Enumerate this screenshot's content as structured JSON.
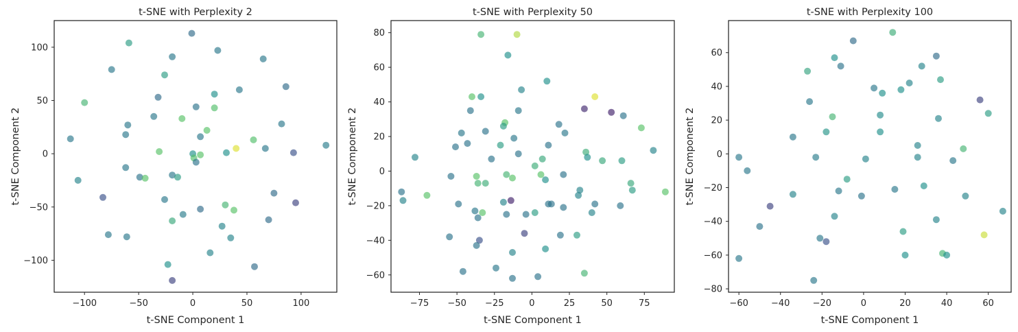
{
  "chart_data": [
    {
      "type": "scatter",
      "title": "t-SNE with Perplexity 2",
      "xlabel": "t-SNE Component 1",
      "ylabel": "t-SNE Component 2",
      "xlim": [
        -128,
        133
      ],
      "ylim": [
        -130,
        125
      ],
      "xticks": [
        -100,
        -50,
        0,
        50,
        100
      ],
      "yticks": [
        -100,
        -50,
        0,
        50,
        100
      ],
      "grid": false,
      "points": [
        {
          "x": -1,
          "y": 113,
          "c": 0.35
        },
        {
          "x": -59,
          "y": 104,
          "c": 0.55
        },
        {
          "x": 23,
          "y": 97,
          "c": 0.4
        },
        {
          "x": -19,
          "y": 91,
          "c": 0.4
        },
        {
          "x": 65,
          "y": 89,
          "c": 0.4
        },
        {
          "x": -75,
          "y": 79,
          "c": 0.4
        },
        {
          "x": -26,
          "y": 74,
          "c": 0.55
        },
        {
          "x": 86,
          "y": 63,
          "c": 0.35
        },
        {
          "x": 43,
          "y": 60,
          "c": 0.4
        },
        {
          "x": 20,
          "y": 56,
          "c": 0.5
        },
        {
          "x": -32,
          "y": 53,
          "c": 0.35
        },
        {
          "x": -100,
          "y": 48,
          "c": 0.65
        },
        {
          "x": 3,
          "y": 44,
          "c": 0.38
        },
        {
          "x": 20,
          "y": 43,
          "c": 0.7
        },
        {
          "x": -36,
          "y": 35,
          "c": 0.4
        },
        {
          "x": -10,
          "y": 33,
          "c": 0.72
        },
        {
          "x": 82,
          "y": 28,
          "c": 0.4
        },
        {
          "x": -60,
          "y": 27,
          "c": 0.4
        },
        {
          "x": 13,
          "y": 22,
          "c": 0.72
        },
        {
          "x": -62,
          "y": 18,
          "c": 0.4
        },
        {
          "x": 7,
          "y": 16,
          "c": 0.4
        },
        {
          "x": 56,
          "y": 13,
          "c": 0.7
        },
        {
          "x": -113,
          "y": 14,
          "c": 0.4
        },
        {
          "x": 123,
          "y": 8,
          "c": 0.42
        },
        {
          "x": 40,
          "y": 5,
          "c": 0.95
        },
        {
          "x": 67,
          "y": 5,
          "c": 0.4
        },
        {
          "x": -31,
          "y": 2,
          "c": 0.72
        },
        {
          "x": 31,
          "y": 1,
          "c": 0.5
        },
        {
          "x": 93,
          "y": 1,
          "c": 0.25
        },
        {
          "x": 0,
          "y": 0,
          "c": 0.5
        },
        {
          "x": 7,
          "y": -1,
          "c": 0.72
        },
        {
          "x": 1,
          "y": -4,
          "c": 0.7
        },
        {
          "x": 3,
          "y": -8,
          "c": 0.38
        },
        {
          "x": -62,
          "y": -13,
          "c": 0.4
        },
        {
          "x": -19,
          "y": -20,
          "c": 0.4
        },
        {
          "x": -14,
          "y": -22,
          "c": 0.55
        },
        {
          "x": -49,
          "y": -22,
          "c": 0.38
        },
        {
          "x": -44,
          "y": -23,
          "c": 0.72
        },
        {
          "x": -106,
          "y": -25,
          "c": 0.45
        },
        {
          "x": 75,
          "y": -37,
          "c": 0.35
        },
        {
          "x": -83,
          "y": -41,
          "c": 0.25
        },
        {
          "x": -26,
          "y": -43,
          "c": 0.4
        },
        {
          "x": 95,
          "y": -46,
          "c": 0.2
        },
        {
          "x": 30,
          "y": -48,
          "c": 0.65
        },
        {
          "x": 7,
          "y": -52,
          "c": 0.35
        },
        {
          "x": 38,
          "y": -53,
          "c": 0.72
        },
        {
          "x": -9,
          "y": -57,
          "c": 0.42
        },
        {
          "x": 70,
          "y": -62,
          "c": 0.35
        },
        {
          "x": -19,
          "y": -63,
          "c": 0.6
        },
        {
          "x": 27,
          "y": -68,
          "c": 0.45
        },
        {
          "x": -78,
          "y": -76,
          "c": 0.4
        },
        {
          "x": -61,
          "y": -78,
          "c": 0.4
        },
        {
          "x": 35,
          "y": -79,
          "c": 0.45
        },
        {
          "x": 16,
          "y": -93,
          "c": 0.45
        },
        {
          "x": -23,
          "y": -104,
          "c": 0.5
        },
        {
          "x": 57,
          "y": -106,
          "c": 0.35
        },
        {
          "x": -19,
          "y": -119,
          "c": 0.2
        }
      ]
    },
    {
      "type": "scatter",
      "title": "t-SNE with Perplexity 50",
      "xlabel": "t-SNE Component 1",
      "ylabel": "t-SNE Component 2",
      "xlim": [
        -94,
        95
      ],
      "ylim": [
        -70,
        87
      ],
      "xticks": [
        -75,
        -50,
        -25,
        0,
        25,
        50,
        75
      ],
      "yticks": [
        -60,
        -40,
        -20,
        0,
        20,
        40,
        60,
        80
      ],
      "grid": false,
      "points": [
        {
          "x": -34,
          "y": 79,
          "c": 0.65
        },
        {
          "x": -10,
          "y": 79,
          "c": 0.88
        },
        {
          "x": -16,
          "y": 67,
          "c": 0.5
        },
        {
          "x": 10,
          "y": 52,
          "c": 0.5
        },
        {
          "x": -7,
          "y": 47,
          "c": 0.45
        },
        {
          "x": -40,
          "y": 43,
          "c": 0.72
        },
        {
          "x": -34,
          "y": 43,
          "c": 0.5
        },
        {
          "x": 42,
          "y": 43,
          "c": 0.95
        },
        {
          "x": 35,
          "y": 36,
          "c": 0.12
        },
        {
          "x": 53,
          "y": 34,
          "c": 0.1
        },
        {
          "x": -41,
          "y": 35,
          "c": 0.38
        },
        {
          "x": -9,
          "y": 35,
          "c": 0.4
        },
        {
          "x": 61,
          "y": 32,
          "c": 0.38
        },
        {
          "x": 18,
          "y": 27,
          "c": 0.38
        },
        {
          "x": -18,
          "y": 28,
          "c": 0.72
        },
        {
          "x": -19,
          "y": 26,
          "c": 0.55
        },
        {
          "x": 73,
          "y": 25,
          "c": 0.72
        },
        {
          "x": -31,
          "y": 23,
          "c": 0.38
        },
        {
          "x": 22,
          "y": 22,
          "c": 0.4
        },
        {
          "x": -47,
          "y": 22,
          "c": 0.4
        },
        {
          "x": -12,
          "y": 19,
          "c": 0.4
        },
        {
          "x": 11,
          "y": 15,
          "c": 0.38
        },
        {
          "x": -43,
          "y": 16,
          "c": 0.38
        },
        {
          "x": -21,
          "y": 15,
          "c": 0.55
        },
        {
          "x": -51,
          "y": 14,
          "c": 0.38
        },
        {
          "x": 81,
          "y": 12,
          "c": 0.45
        },
        {
          "x": 36,
          "y": 11,
          "c": 0.62
        },
        {
          "x": -9,
          "y": 10,
          "c": 0.38
        },
        {
          "x": -78,
          "y": 8,
          "c": 0.45
        },
        {
          "x": 37,
          "y": 8,
          "c": 0.5
        },
        {
          "x": 7,
          "y": 7,
          "c": 0.6
        },
        {
          "x": -27,
          "y": 7,
          "c": 0.38
        },
        {
          "x": 47,
          "y": 6,
          "c": 0.6
        },
        {
          "x": 60,
          "y": 6,
          "c": 0.55
        },
        {
          "x": 2,
          "y": 3,
          "c": 0.62
        },
        {
          "x": -17,
          "y": -2,
          "c": 0.65
        },
        {
          "x": -37,
          "y": -3,
          "c": 0.72
        },
        {
          "x": -54,
          "y": -3,
          "c": 0.38
        },
        {
          "x": 6,
          "y": -2,
          "c": 0.72
        },
        {
          "x": 21,
          "y": -2,
          "c": 0.38
        },
        {
          "x": -13,
          "y": -4,
          "c": 0.72
        },
        {
          "x": 9,
          "y": -5,
          "c": 0.5
        },
        {
          "x": -36,
          "y": -7,
          "c": 0.65
        },
        {
          "x": -31,
          "y": -7,
          "c": 0.62
        },
        {
          "x": 66,
          "y": -7,
          "c": 0.6
        },
        {
          "x": 67,
          "y": -11,
          "c": 0.55
        },
        {
          "x": 32,
          "y": -11,
          "c": 0.45
        },
        {
          "x": 89,
          "y": -12,
          "c": 0.72
        },
        {
          "x": -87,
          "y": -12,
          "c": 0.38
        },
        {
          "x": -70,
          "y": -14,
          "c": 0.72
        },
        {
          "x": 31,
          "y": -14,
          "c": 0.45
        },
        {
          "x": -14,
          "y": -17,
          "c": 0.1
        },
        {
          "x": -86,
          "y": -17,
          "c": 0.45
        },
        {
          "x": -19,
          "y": -18,
          "c": 0.45
        },
        {
          "x": 42,
          "y": -19,
          "c": 0.38
        },
        {
          "x": 11,
          "y": -19,
          "c": 0.38
        },
        {
          "x": 13,
          "y": -19,
          "c": 0.38
        },
        {
          "x": -49,
          "y": -19,
          "c": 0.38
        },
        {
          "x": 59,
          "y": -20,
          "c": 0.38
        },
        {
          "x": 21,
          "y": -21,
          "c": 0.38
        },
        {
          "x": -38,
          "y": -23,
          "c": 0.4
        },
        {
          "x": -33,
          "y": -24,
          "c": 0.72
        },
        {
          "x": 2,
          "y": -24,
          "c": 0.55
        },
        {
          "x": 40,
          "y": -24,
          "c": 0.45
        },
        {
          "x": -4,
          "y": -25,
          "c": 0.38
        },
        {
          "x": -17,
          "y": -25,
          "c": 0.38
        },
        {
          "x": -36,
          "y": -27,
          "c": 0.38
        },
        {
          "x": -5,
          "y": -36,
          "c": 0.2
        },
        {
          "x": 30,
          "y": -37,
          "c": 0.55
        },
        {
          "x": 19,
          "y": -37,
          "c": 0.38
        },
        {
          "x": -55,
          "y": -38,
          "c": 0.38
        },
        {
          "x": -35,
          "y": -40,
          "c": 0.25
        },
        {
          "x": -37,
          "y": -43,
          "c": 0.38
        },
        {
          "x": 9,
          "y": -45,
          "c": 0.5
        },
        {
          "x": -13,
          "y": -47,
          "c": 0.45
        },
        {
          "x": -24,
          "y": -56,
          "c": 0.4
        },
        {
          "x": -46,
          "y": -58,
          "c": 0.38
        },
        {
          "x": 35,
          "y": -59,
          "c": 0.65
        },
        {
          "x": 4,
          "y": -61,
          "c": 0.38
        },
        {
          "x": -13,
          "y": -62,
          "c": 0.38
        }
      ]
    },
    {
      "type": "scatter",
      "title": "t-SNE with Perplexity 100",
      "xlabel": "t-SNE Component 1",
      "ylabel": "t-SNE Component 2",
      "xlim": [
        -65,
        71
      ],
      "ylim": [
        -82,
        79
      ],
      "xticks": [
        -60,
        -40,
        -20,
        0,
        20,
        40,
        60
      ],
      "yticks": [
        -80,
        -60,
        -40,
        -20,
        0,
        20,
        40,
        60
      ],
      "grid": false,
      "points": [
        {
          "x": 14,
          "y": 72,
          "c": 0.62
        },
        {
          "x": -5,
          "y": 67,
          "c": 0.35
        },
        {
          "x": 35,
          "y": 58,
          "c": 0.35
        },
        {
          "x": -14,
          "y": 57,
          "c": 0.5
        },
        {
          "x": -11,
          "y": 52,
          "c": 0.38
        },
        {
          "x": 28,
          "y": 52,
          "c": 0.45
        },
        {
          "x": -27,
          "y": 49,
          "c": 0.58
        },
        {
          "x": 37,
          "y": 44,
          "c": 0.55
        },
        {
          "x": 22,
          "y": 42,
          "c": 0.45
        },
        {
          "x": 5,
          "y": 39,
          "c": 0.4
        },
        {
          "x": 18,
          "y": 38,
          "c": 0.5
        },
        {
          "x": 9,
          "y": 36,
          "c": 0.5
        },
        {
          "x": 56,
          "y": 32,
          "c": 0.2
        },
        {
          "x": -26,
          "y": 31,
          "c": 0.4
        },
        {
          "x": 60,
          "y": 24,
          "c": 0.55
        },
        {
          "x": -15,
          "y": 22,
          "c": 0.65
        },
        {
          "x": 8,
          "y": 23,
          "c": 0.48
        },
        {
          "x": 36,
          "y": 21,
          "c": 0.45
        },
        {
          "x": -18,
          "y": 13,
          "c": 0.52
        },
        {
          "x": 8,
          "y": 13,
          "c": 0.5
        },
        {
          "x": -34,
          "y": 10,
          "c": 0.4
        },
        {
          "x": 26,
          "y": 5,
          "c": 0.45
        },
        {
          "x": 48,
          "y": 3,
          "c": 0.65
        },
        {
          "x": -60,
          "y": -2,
          "c": 0.4
        },
        {
          "x": -23,
          "y": -2,
          "c": 0.42
        },
        {
          "x": 1,
          "y": -3,
          "c": 0.45
        },
        {
          "x": 26,
          "y": -2,
          "c": 0.45
        },
        {
          "x": 43,
          "y": -4,
          "c": 0.4
        },
        {
          "x": -56,
          "y": -10,
          "c": 0.4
        },
        {
          "x": -8,
          "y": -15,
          "c": 0.55
        },
        {
          "x": 29,
          "y": -19,
          "c": 0.5
        },
        {
          "x": 15,
          "y": -21,
          "c": 0.4
        },
        {
          "x": -12,
          "y": -22,
          "c": 0.4
        },
        {
          "x": -34,
          "y": -24,
          "c": 0.45
        },
        {
          "x": -1,
          "y": -25,
          "c": 0.38
        },
        {
          "x": 49,
          "y": -25,
          "c": 0.45
        },
        {
          "x": -45,
          "y": -31,
          "c": 0.2
        },
        {
          "x": 67,
          "y": -34,
          "c": 0.45
        },
        {
          "x": -14,
          "y": -37,
          "c": 0.45
        },
        {
          "x": 35,
          "y": -39,
          "c": 0.45
        },
        {
          "x": -50,
          "y": -43,
          "c": 0.38
        },
        {
          "x": 19,
          "y": -46,
          "c": 0.55
        },
        {
          "x": 58,
          "y": -48,
          "c": 0.92
        },
        {
          "x": -21,
          "y": -50,
          "c": 0.4
        },
        {
          "x": -18,
          "y": -52,
          "c": 0.25
        },
        {
          "x": 38,
          "y": -59,
          "c": 0.65
        },
        {
          "x": 40,
          "y": -60,
          "c": 0.5
        },
        {
          "x": 20,
          "y": -60,
          "c": 0.5
        },
        {
          "x": -60,
          "y": -62,
          "c": 0.4
        },
        {
          "x": -24,
          "y": -75,
          "c": 0.4
        }
      ]
    }
  ]
}
